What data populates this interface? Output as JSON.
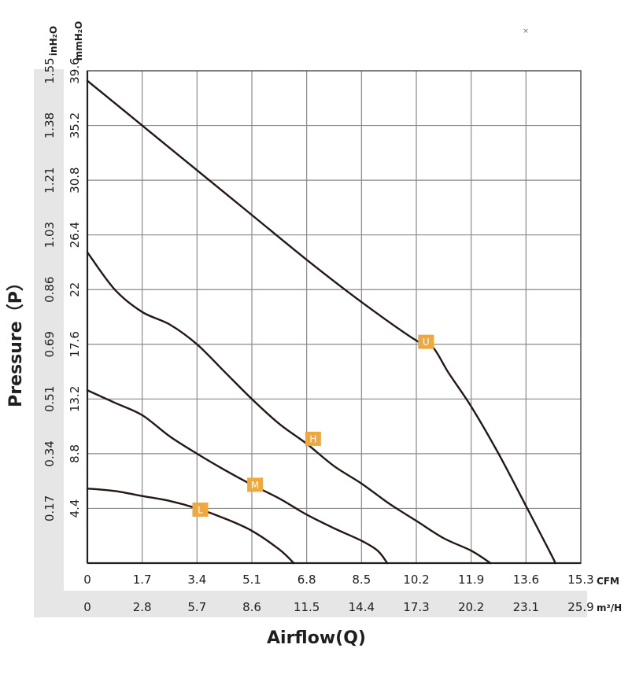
{
  "chart_data": {
    "type": "line",
    "xlabel": "Airflow(Q)",
    "ylabel": "Pressure（P）",
    "x_unit_primary": "CFM",
    "x_unit_secondary": "m³/H",
    "y_unit_primary": "mmH₂O",
    "y_unit_secondary": "inH₂O",
    "xlim": [
      0,
      15.3
    ],
    "ylim": [
      0,
      39.6
    ],
    "x_ticks_cfm": [
      "0",
      "1.7",
      "3.4",
      "5.1",
      "6.8",
      "8.5",
      "10.2",
      "11.9",
      "13.6",
      "15.3"
    ],
    "x_ticks_m3h": [
      "0",
      "2.8",
      "5.7",
      "8.6",
      "11.5",
      "14.4",
      "17.3",
      "20.2",
      "23.1",
      "25.9"
    ],
    "y_ticks_mmh2o": [
      "4.4",
      "8.8",
      "13.2",
      "17.6",
      "22",
      "26.4",
      "30.8",
      "35.2",
      "39.6"
    ],
    "y_ticks_inh2o": [
      "0.17",
      "0.34",
      "0.51",
      "0.69",
      "0.86",
      "1.03",
      "1.21",
      "1.38",
      "1.55"
    ],
    "grid": true,
    "series": [
      {
        "name": "U",
        "color": "#231815",
        "marker": {
          "x": 10.5,
          "y": 17.8
        },
        "points": [
          [
            0,
            38.8
          ],
          [
            1.7,
            35.2
          ],
          [
            3.4,
            31.6
          ],
          [
            5.1,
            28.0
          ],
          [
            6.8,
            24.4
          ],
          [
            8.5,
            21.0
          ],
          [
            10.2,
            17.9
          ],
          [
            10.7,
            17.4
          ],
          [
            11.2,
            15.3
          ],
          [
            11.9,
            12.6
          ],
          [
            12.75,
            8.8
          ],
          [
            13.6,
            4.6
          ],
          [
            14.4,
            0.6
          ],
          [
            14.5,
            0
          ]
        ]
      },
      {
        "name": "H",
        "color": "#231815",
        "marker": {
          "x": 7.0,
          "y": 10.0
        },
        "points": [
          [
            0,
            25.0
          ],
          [
            0.85,
            22.0
          ],
          [
            1.7,
            20.2
          ],
          [
            2.55,
            19.2
          ],
          [
            3.4,
            17.6
          ],
          [
            4.25,
            15.4
          ],
          [
            5.1,
            13.2
          ],
          [
            5.95,
            11.2
          ],
          [
            6.8,
            9.6
          ],
          [
            7.65,
            7.8
          ],
          [
            8.5,
            6.4
          ],
          [
            9.35,
            4.8
          ],
          [
            10.2,
            3.4
          ],
          [
            11.05,
            2.0
          ],
          [
            11.9,
            1.0
          ],
          [
            12.5,
            0
          ]
        ]
      },
      {
        "name": "M",
        "color": "#231815",
        "marker": {
          "x": 5.2,
          "y": 6.3
        },
        "points": [
          [
            0,
            13.9
          ],
          [
            0.85,
            12.9
          ],
          [
            1.7,
            11.9
          ],
          [
            2.55,
            10.2
          ],
          [
            3.4,
            8.8
          ],
          [
            4.25,
            7.5
          ],
          [
            5.1,
            6.3
          ],
          [
            5.95,
            5.2
          ],
          [
            6.8,
            3.9
          ],
          [
            7.65,
            2.8
          ],
          [
            8.5,
            1.8
          ],
          [
            9.0,
            1.0
          ],
          [
            9.3,
            0
          ]
        ]
      },
      {
        "name": "L",
        "color": "#231815",
        "marker": {
          "x": 3.5,
          "y": 4.3
        },
        "points": [
          [
            0,
            6.0
          ],
          [
            0.85,
            5.8
          ],
          [
            1.7,
            5.4
          ],
          [
            2.55,
            5.0
          ],
          [
            3.4,
            4.4
          ],
          [
            4.25,
            3.6
          ],
          [
            5.1,
            2.6
          ],
          [
            5.95,
            1.1
          ],
          [
            6.4,
            0
          ]
        ]
      }
    ],
    "marker_fill": "#f0a83c",
    "grid_color": "#8a8a8a",
    "axis_bg": "#e6e6e6"
  },
  "decoration": {
    "corner_mark": "×"
  }
}
